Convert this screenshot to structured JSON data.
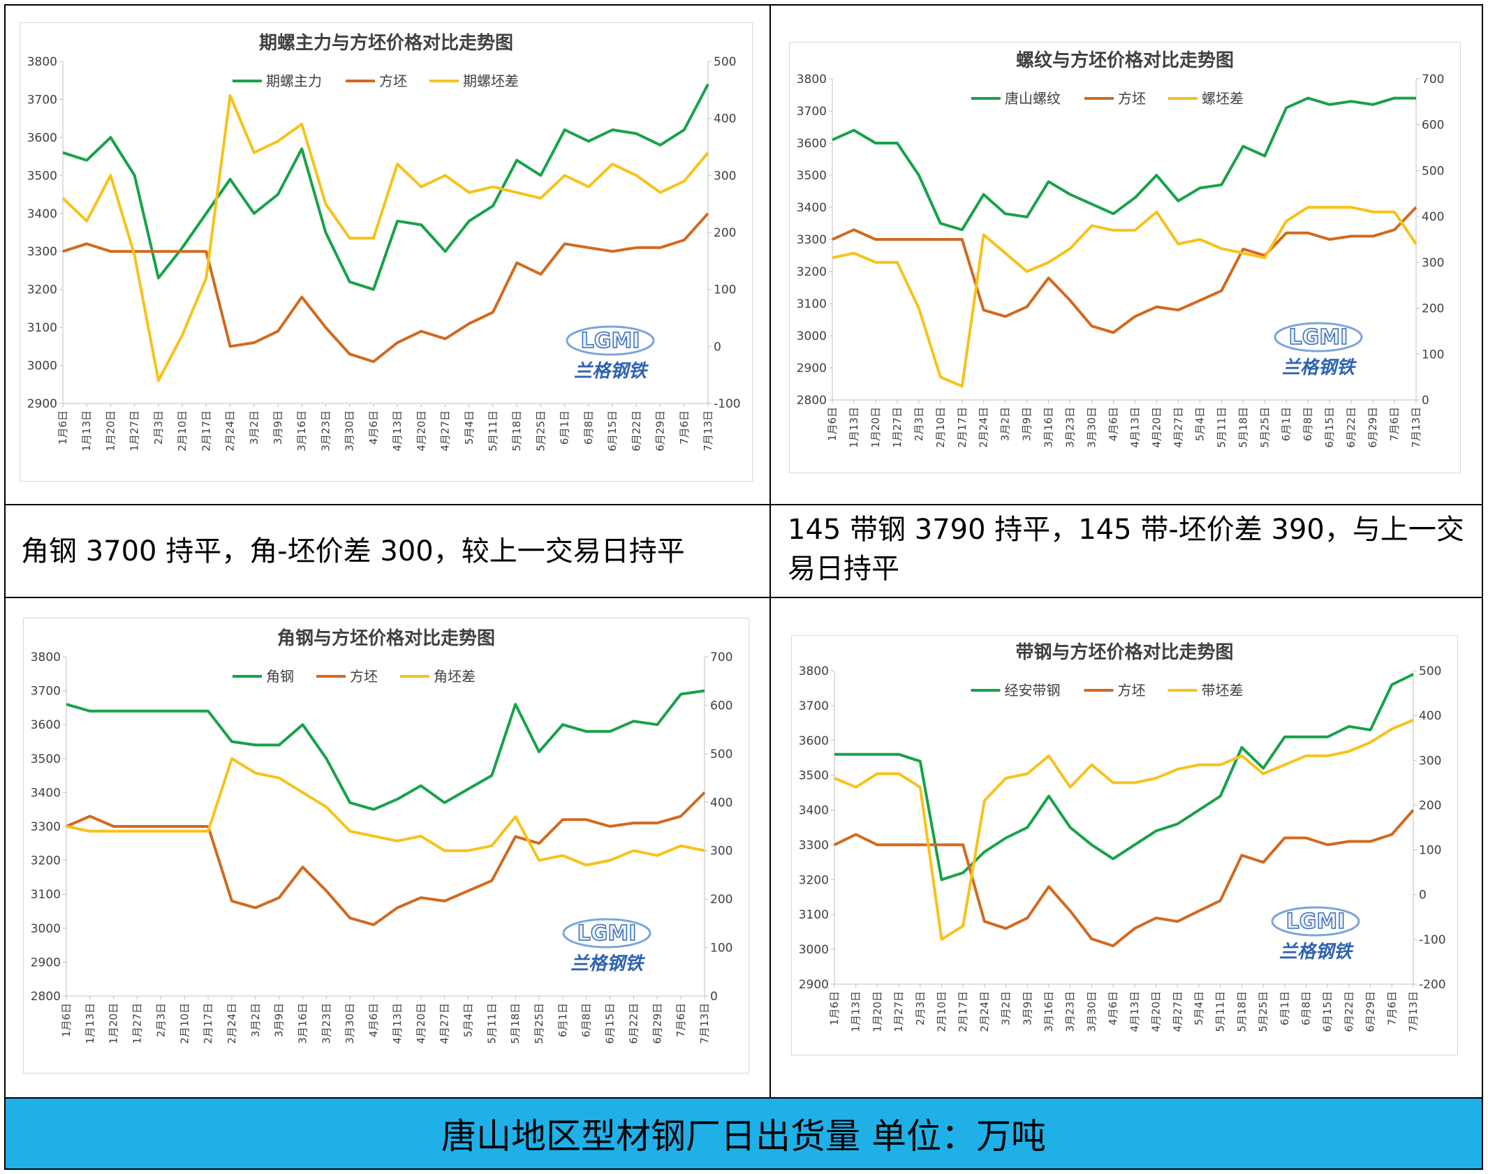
{
  "panels": {
    "text_left": "角钢 3700  持平，角-坯价差 300，较上一交易日持平",
    "text_right": "145 带钢 3790  持平，145 带-坯价差 390，与上一交易日持平",
    "footer": "唐山地区型材钢厂日出货量  单位：万吨"
  },
  "logo": {
    "mark": "LGMI",
    "name": "兰格钢铁"
  },
  "colors": {
    "green": "#17a24a",
    "orange": "#d2691e",
    "yellow": "#f7c21a",
    "footer_bg": "#1fb0e8"
  },
  "chart_data": [
    {
      "type": "line",
      "title": "期螺主力与方坯价格对比走势图",
      "categories": [
        "1月6日",
        "1月13日",
        "1月20日",
        "1月27日",
        "2月3日",
        "2月10日",
        "2月17日",
        "2月24日",
        "3月2日",
        "3月9日",
        "3月16日",
        "3月23日",
        "3月30日",
        "4月6日",
        "4月13日",
        "4月20日",
        "4月27日",
        "5月4日",
        "5月11日",
        "5月18日",
        "5月25日",
        "6月1日",
        "6月8日",
        "6月15日",
        "6月22日",
        "6月29日",
        "7月6日",
        "7月13日"
      ],
      "ylim": [
        2900,
        3800
      ],
      "yticks": [
        2900,
        3000,
        3100,
        3200,
        3300,
        3400,
        3500,
        3600,
        3700,
        3800
      ],
      "y2lim": [
        -100,
        500
      ],
      "y2ticks": [
        -100,
        0,
        100,
        200,
        300,
        400,
        500
      ],
      "series": [
        {
          "name": "期螺主力",
          "axis": "left",
          "color": "#17a24a",
          "values": [
            3560,
            3540,
            3600,
            3500,
            3230,
            3310,
            3400,
            3490,
            3400,
            3450,
            3570,
            3350,
            3220,
            3200,
            3380,
            3370,
            3300,
            3380,
            3420,
            3540,
            3500,
            3620,
            3590,
            3620,
            3610,
            3580,
            3620,
            3740
          ]
        },
        {
          "name": "方坯",
          "axis": "left",
          "color": "#d2691e",
          "values": [
            3300,
            3320,
            3300,
            3300,
            3300,
            3300,
            3300,
            3050,
            3060,
            3090,
            3180,
            3100,
            3030,
            3010,
            3060,
            3090,
            3070,
            3110,
            3140,
            3270,
            3240,
            3320,
            3310,
            3300,
            3310,
            3310,
            3330,
            3400
          ]
        },
        {
          "name": "期螺坯差",
          "axis": "right",
          "color": "#f7c21a",
          "values": [
            260,
            220,
            300,
            160,
            -60,
            20,
            120,
            440,
            340,
            360,
            390,
            250,
            190,
            190,
            320,
            280,
            300,
            270,
            280,
            270,
            260,
            300,
            280,
            320,
            300,
            270,
            290,
            340
          ]
        }
      ]
    },
    {
      "type": "line",
      "title": "螺纹与方坯价格对比走势图",
      "categories": [
        "1月6日",
        "1月13日",
        "1月20日",
        "1月27日",
        "2月3日",
        "2月10日",
        "2月17日",
        "2月24日",
        "3月2日",
        "3月9日",
        "3月16日",
        "3月23日",
        "3月30日",
        "4月6日",
        "4月13日",
        "4月20日",
        "4月27日",
        "5月4日",
        "5月11日",
        "5月18日",
        "5月25日",
        "6月1日",
        "6月8日",
        "6月15日",
        "6月22日",
        "6月29日",
        "7月6日",
        "7月13日"
      ],
      "ylim": [
        2800,
        3800
      ],
      "yticks": [
        2800,
        2900,
        3000,
        3100,
        3200,
        3300,
        3400,
        3500,
        3600,
        3700,
        3800
      ],
      "y2lim": [
        0,
        700
      ],
      "y2ticks": [
        0,
        100,
        200,
        300,
        400,
        500,
        600,
        700
      ],
      "series": [
        {
          "name": "唐山螺纹",
          "axis": "left",
          "color": "#17a24a",
          "values": [
            3610,
            3640,
            3600,
            3600,
            3500,
            3350,
            3330,
            3440,
            3380,
            3370,
            3480,
            3440,
            3410,
            3380,
            3430,
            3500,
            3420,
            3460,
            3470,
            3590,
            3560,
            3710,
            3740,
            3720,
            3730,
            3720,
            3740,
            3740
          ]
        },
        {
          "name": "方坯",
          "axis": "left",
          "color": "#d2691e",
          "values": [
            3300,
            3330,
            3300,
            3300,
            3300,
            3300,
            3300,
            3080,
            3060,
            3090,
            3180,
            3110,
            3030,
            3010,
            3060,
            3090,
            3080,
            3110,
            3140,
            3270,
            3250,
            3320,
            3320,
            3300,
            3310,
            3310,
            3330,
            3400
          ]
        },
        {
          "name": "螺坯差",
          "axis": "right",
          "color": "#f7c21a",
          "values": [
            310,
            320,
            300,
            300,
            200,
            50,
            30,
            360,
            320,
            280,
            300,
            330,
            380,
            370,
            370,
            410,
            340,
            350,
            330,
            320,
            310,
            390,
            420,
            420,
            420,
            410,
            410,
            340
          ]
        }
      ]
    },
    {
      "type": "line",
      "title": "角钢与方坯价格对比走势图",
      "categories": [
        "1月6日",
        "1月13日",
        "1月20日",
        "1月27日",
        "2月3日",
        "2月10日",
        "2月17日",
        "2月24日",
        "3月2日",
        "3月9日",
        "3月16日",
        "3月23日",
        "3月30日",
        "4月6日",
        "4月13日",
        "4月20日",
        "4月27日",
        "5月4日",
        "5月11日",
        "5月18日",
        "5月25日",
        "6月1日",
        "6月8日",
        "6月15日",
        "6月22日",
        "6月29日",
        "7月6日",
        "7月13日"
      ],
      "ylim": [
        2800,
        3800
      ],
      "yticks": [
        2800,
        2900,
        3000,
        3100,
        3200,
        3300,
        3400,
        3500,
        3600,
        3700,
        3800
      ],
      "y2lim": [
        0,
        700
      ],
      "y2ticks": [
        0,
        100,
        200,
        300,
        400,
        500,
        600,
        700
      ],
      "series": [
        {
          "name": "角钢",
          "axis": "left",
          "color": "#17a24a",
          "values": [
            3660,
            3640,
            3640,
            3640,
            3640,
            3640,
            3640,
            3550,
            3540,
            3540,
            3600,
            3500,
            3370,
            3350,
            3380,
            3420,
            3370,
            3410,
            3450,
            3660,
            3520,
            3600,
            3580,
            3580,
            3610,
            3600,
            3690,
            3700
          ]
        },
        {
          "name": "方坯",
          "axis": "left",
          "color": "#d2691e",
          "values": [
            3300,
            3330,
            3300,
            3300,
            3300,
            3300,
            3300,
            3080,
            3060,
            3090,
            3180,
            3110,
            3030,
            3010,
            3060,
            3090,
            3080,
            3110,
            3140,
            3270,
            3250,
            3320,
            3320,
            3300,
            3310,
            3310,
            3330,
            3400
          ]
        },
        {
          "name": "角坯差",
          "axis": "right",
          "color": "#f7c21a",
          "values": [
            350,
            340,
            340,
            340,
            340,
            340,
            340,
            490,
            460,
            450,
            420,
            390,
            340,
            330,
            320,
            330,
            300,
            300,
            310,
            370,
            280,
            290,
            270,
            280,
            300,
            290,
            310,
            300
          ]
        }
      ]
    },
    {
      "type": "line",
      "title": "带钢与方坯价格对比走势图",
      "categories": [
        "1月6日",
        "1月13日",
        "1月20日",
        "1月27日",
        "2月3日",
        "2月10日",
        "2月17日",
        "2月24日",
        "3月2日",
        "3月9日",
        "3月16日",
        "3月23日",
        "3月30日",
        "4月6日",
        "4月13日",
        "4月20日",
        "4月27日",
        "5月4日",
        "5月11日",
        "5月18日",
        "5月25日",
        "6月1日",
        "6月8日",
        "6月15日",
        "6月22日",
        "6月29日",
        "7月6日",
        "7月13日"
      ],
      "ylim": [
        2900,
        3800
      ],
      "yticks": [
        2900,
        3000,
        3100,
        3200,
        3300,
        3400,
        3500,
        3600,
        3700,
        3800
      ],
      "y2lim": [
        -200,
        500
      ],
      "y2ticks": [
        -200,
        -100,
        0,
        100,
        200,
        300,
        400,
        500
      ],
      "series": [
        {
          "name": "经安带钢",
          "axis": "left",
          "color": "#17a24a",
          "values": [
            3560,
            3560,
            3560,
            3560,
            3540,
            3200,
            3220,
            3280,
            3320,
            3350,
            3440,
            3350,
            3300,
            3260,
            3300,
            3340,
            3360,
            3400,
            3440,
            3580,
            3520,
            3610,
            3610,
            3610,
            3640,
            3630,
            3760,
            3790
          ]
        },
        {
          "name": "方坯",
          "axis": "left",
          "color": "#d2691e",
          "values": [
            3300,
            3330,
            3300,
            3300,
            3300,
            3300,
            3300,
            3080,
            3060,
            3090,
            3180,
            3110,
            3030,
            3010,
            3060,
            3090,
            3080,
            3110,
            3140,
            3270,
            3250,
            3320,
            3320,
            3300,
            3310,
            3310,
            3330,
            3400
          ]
        },
        {
          "name": "带坯差",
          "axis": "right",
          "color": "#f7c21a",
          "values": [
            260,
            240,
            270,
            270,
            240,
            -100,
            -70,
            210,
            260,
            270,
            310,
            240,
            290,
            250,
            250,
            260,
            280,
            290,
            290,
            310,
            270,
            290,
            310,
            310,
            320,
            340,
            370,
            390
          ]
        }
      ]
    }
  ]
}
